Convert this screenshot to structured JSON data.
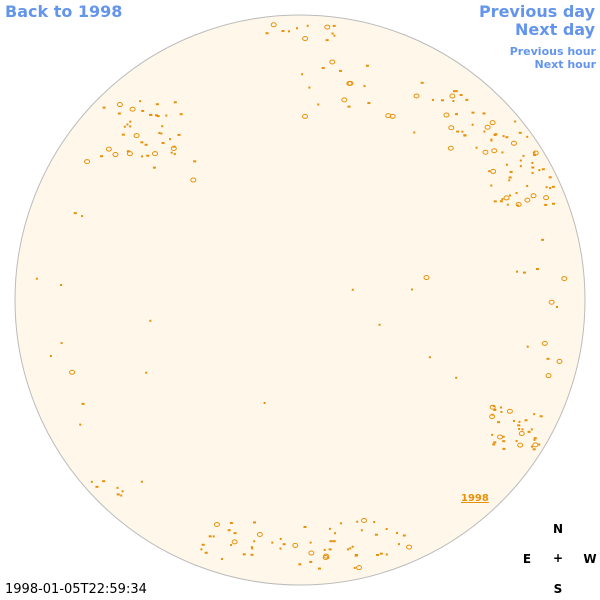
{
  "nav": {
    "back": "Back to 1998",
    "previous_day": "Previous day",
    "next_day": "Next day",
    "previous_hour": "Previous hour",
    "next_hour": "Next hour"
  },
  "disk_label": "1998",
  "compass": {
    "north": "N",
    "east": "E",
    "center": "+",
    "west": "W",
    "south": "S"
  },
  "timestamp": "1998-01-05T22:59:34"
}
